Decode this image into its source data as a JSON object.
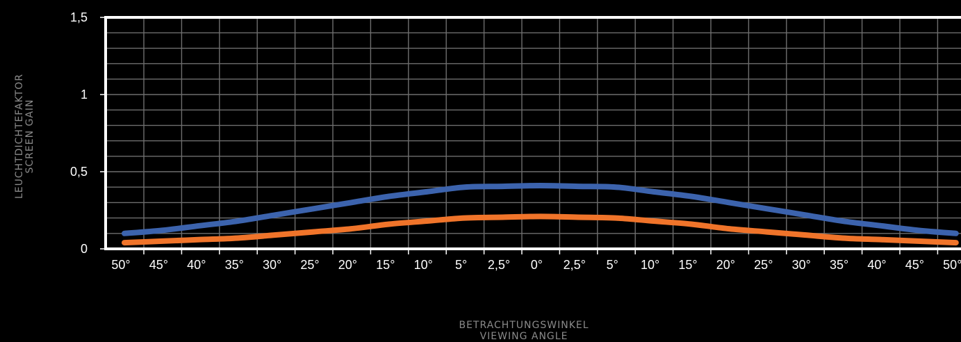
{
  "chart_data": {
    "type": "line",
    "title": "",
    "ylabel": [
      "LEUCHTDICHTEFAKTOR",
      "SCREEN GAIN"
    ],
    "xlabel": [
      "BETRACHTUNGSWINKEL",
      "VIEWING ANGLE"
    ],
    "categories": [
      "50°",
      "45°",
      "40°",
      "35°",
      "30°",
      "25°",
      "20°",
      "15°",
      "10°",
      "5°",
      "2,5°",
      "0°",
      "2,5°",
      "5°",
      "10°",
      "15°",
      "20°",
      "25°",
      "30°",
      "35°",
      "40°",
      "45°",
      "50°"
    ],
    "yticks": [
      {
        "value": 0,
        "label": "0"
      },
      {
        "value": 0.5,
        "label": "0,5"
      },
      {
        "value": 1,
        "label": "1"
      },
      {
        "value": 1.5,
        "label": "1,5"
      }
    ],
    "ylim": [
      0,
      1.5
    ],
    "grid": true,
    "series": [
      {
        "color": "#3c63ad",
        "values": [
          0.1,
          0.12,
          0.15,
          0.18,
          0.22,
          0.26,
          0.3,
          0.34,
          0.37,
          0.4,
          0.405,
          0.41,
          0.405,
          0.4,
          0.37,
          0.34,
          0.3,
          0.26,
          0.22,
          0.18,
          0.15,
          0.12,
          0.1
        ]
      },
      {
        "color": "#f0742a",
        "values": [
          0.04,
          0.05,
          0.06,
          0.07,
          0.09,
          0.11,
          0.13,
          0.16,
          0.18,
          0.2,
          0.205,
          0.21,
          0.205,
          0.2,
          0.18,
          0.16,
          0.13,
          0.11,
          0.09,
          0.07,
          0.06,
          0.05,
          0.04
        ]
      }
    ]
  }
}
